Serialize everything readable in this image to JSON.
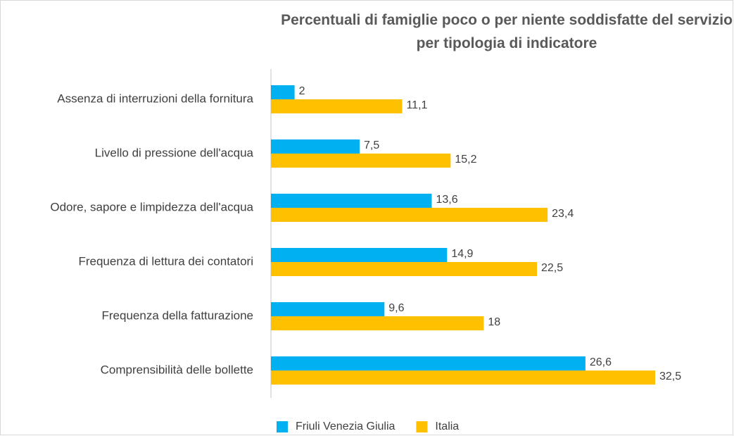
{
  "chart_data": {
    "type": "hbar",
    "title": "Percentuali di famiglie poco o per niente soddisfatte del servizio per tipologia di indicatore",
    "categories": [
      "Assenza di interruzioni della fornitura",
      "Livello di pressione dell'acqua",
      "Odore, sapore e limpidezza dell'acqua",
      "Frequenza di lettura dei contatori",
      "Frequenza della fatturazione",
      "Comprensibilità delle bollette"
    ],
    "series": [
      {
        "name": "Friuli Venezia Giulia",
        "color": "#00b0f0",
        "values": [
          2,
          7.5,
          13.6,
          14.9,
          9.6,
          26.6
        ],
        "value_labels": [
          "2",
          "7,5",
          "13,6",
          "14,9",
          "9,6",
          "26,6"
        ]
      },
      {
        "name": "Italia",
        "color": "#ffc000",
        "values": [
          11.1,
          15.2,
          23.4,
          22.5,
          18,
          32.5
        ],
        "value_labels": [
          "11,1",
          "15,2",
          "23,4",
          "22,5",
          "18",
          "32,5"
        ]
      }
    ],
    "xlim": [
      0,
      35
    ],
    "legend": "bottom"
  }
}
